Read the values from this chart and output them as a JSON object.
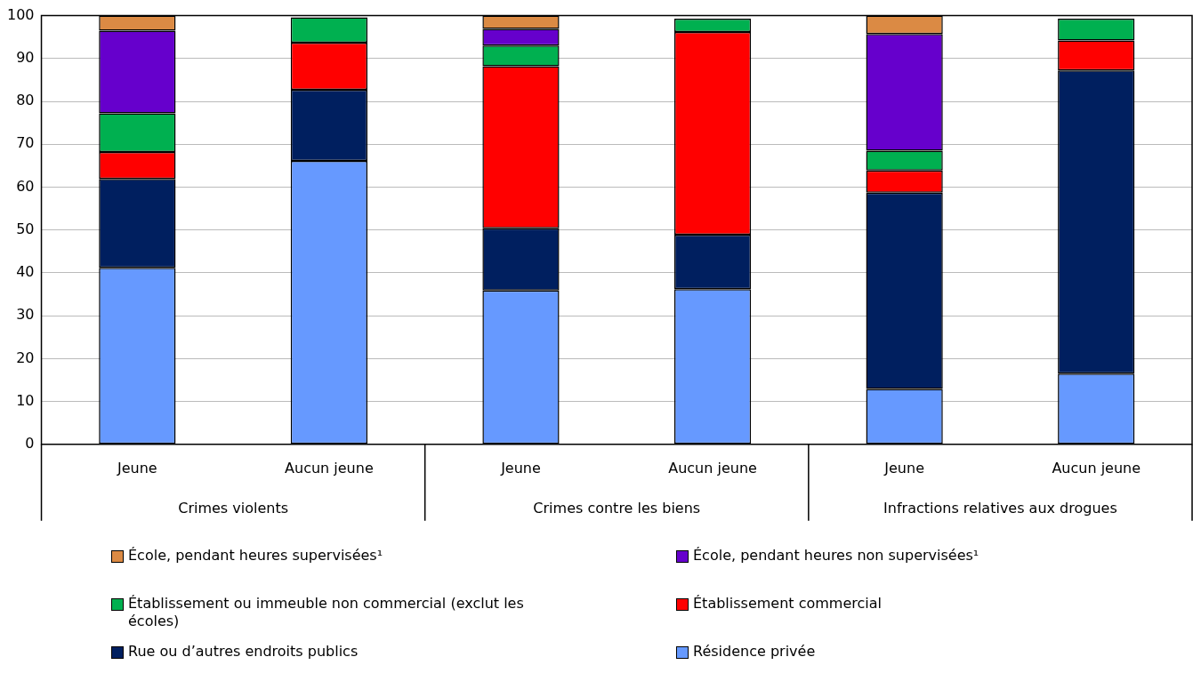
{
  "chart_data": {
    "type": "bar",
    "stacked": true,
    "categories": [
      "Jeune",
      "Aucun jeune",
      "Jeune",
      "Aucun jeune",
      "Jeune",
      "Aucun jeune"
    ],
    "annotations": [
      "Crimes violents",
      "Crimes contre les biens",
      "Infractions relatives aux drogues"
    ],
    "ylim": [
      0,
      100
    ],
    "yticks": [
      0,
      10,
      20,
      30,
      40,
      50,
      60,
      70,
      80,
      90,
      100
    ],
    "grid": "y",
    "legend": "bottom",
    "series": [
      {
        "name": "Résidence privée",
        "color": "#6699ff",
        "values": [
          41.2,
          66.1,
          35.9,
          36.2,
          12.9,
          16.5
        ]
      },
      {
        "name": "Rue ou d’autres endroits publics",
        "color": "#001f5f",
        "values": [
          20.7,
          16.6,
          14.5,
          12.7,
          45.8,
          70.7
        ]
      },
      {
        "name": "Établissement commercial",
        "color": "#ff0000",
        "values": [
          6.3,
          11.0,
          37.8,
          47.3,
          5.2,
          7.0
        ]
      },
      {
        "name": "Établissement ou immeuble non commercial (exclut les écoles)",
        "color": "#00b050",
        "values": [
          9.0,
          5.9,
          4.8,
          3.1,
          4.6,
          5.1
        ]
      },
      {
        "name": "École, pendant heures non supervisées¹",
        "color": "#6600cc",
        "values": [
          19.3,
          null,
          3.9,
          null,
          27.2,
          null
        ]
      },
      {
        "name": "École, pendant heures supervisées¹",
        "color": "#db8a44",
        "values": [
          3.5,
          null,
          3.1,
          null,
          4.3,
          null
        ]
      }
    ]
  }
}
